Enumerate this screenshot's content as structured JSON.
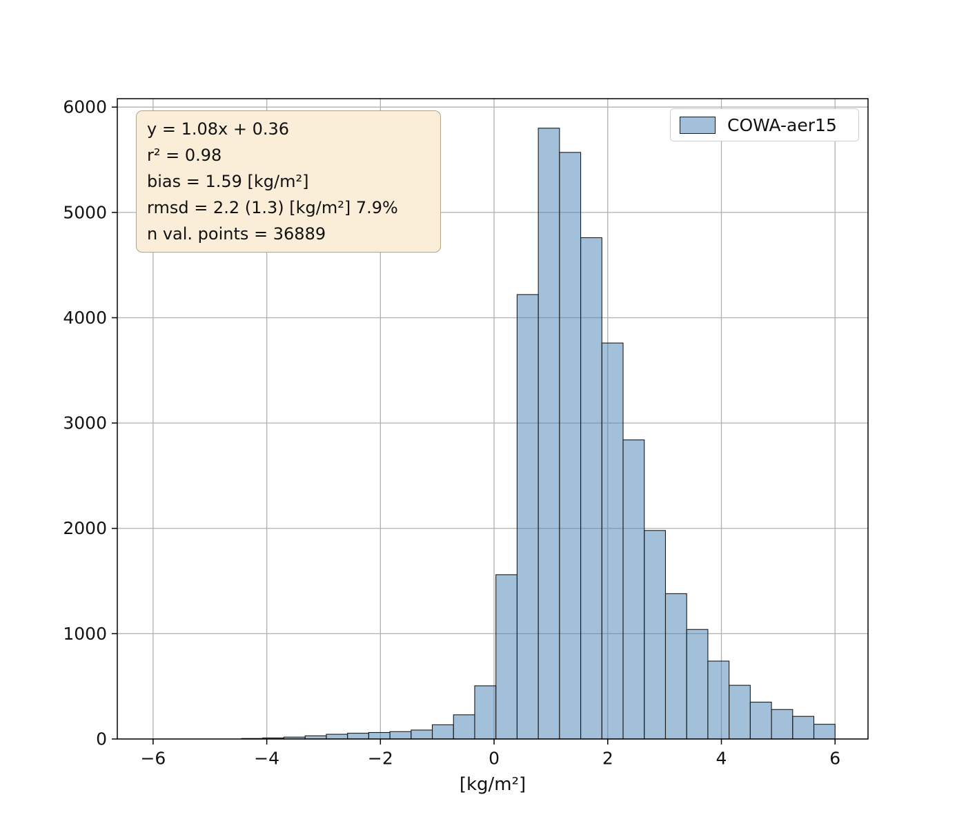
{
  "chart_data": {
    "type": "bar",
    "subtype": "histogram",
    "title": "",
    "xlabel": "[kg/m²]",
    "ylabel": "",
    "legend": [
      "COWA-aer15"
    ],
    "legend_position": "upper right",
    "grid": true,
    "xlim": [
      -6.63,
      6.58
    ],
    "ylim": [
      0,
      6080
    ],
    "x_tick_values": [
      -6,
      -4,
      -2,
      0,
      2,
      4,
      6
    ],
    "x_tick_labels": [
      "−6",
      "−4",
      "−2",
      "0",
      "2",
      "4",
      "6"
    ],
    "y_tick_values": [
      0,
      1000,
      2000,
      3000,
      4000,
      5000,
      6000
    ],
    "y_tick_labels": [
      "0",
      "1000",
      "2000",
      "3000",
      "4000",
      "5000",
      "6000"
    ],
    "bin_start": -4.444,
    "bin_width": 0.373,
    "counts": [
      5,
      10,
      18,
      30,
      45,
      55,
      62,
      70,
      85,
      135,
      230,
      505,
      1560,
      4220,
      5800,
      5570,
      4760,
      3760,
      2840,
      1980,
      1380,
      1040,
      740,
      510,
      350,
      280,
      215,
      140
    ],
    "bar_fill_hex": "#4682b4",
    "bar_fill_alpha": 0.5,
    "bar_edge_hex": "#1a1a1a",
    "grid_color_hex": "#b0b0b0",
    "axis_color_hex": "#000000",
    "annotation_lines": [
      "y = 1.08x + 0.36",
      "r² = 0.98",
      "bias = 1.59 [kg/m²]",
      "rmsd = 2.2 (1.3) [kg/m²] 7.9%",
      "n val. points = 36889"
    ],
    "stats": {
      "fit_slope": 1.08,
      "fit_intercept": 0.36,
      "r_squared": 0.98,
      "bias": 1.59,
      "bias_units": "[kg/m²]",
      "rmsd": 2.2,
      "rmsd_secondary": 1.3,
      "rmsd_percent": "7.9%",
      "n_val_points": 36889
    },
    "stats_box_bg_hex": "#faeed9",
    "stats_box_border_hex": "#b2a288"
  }
}
